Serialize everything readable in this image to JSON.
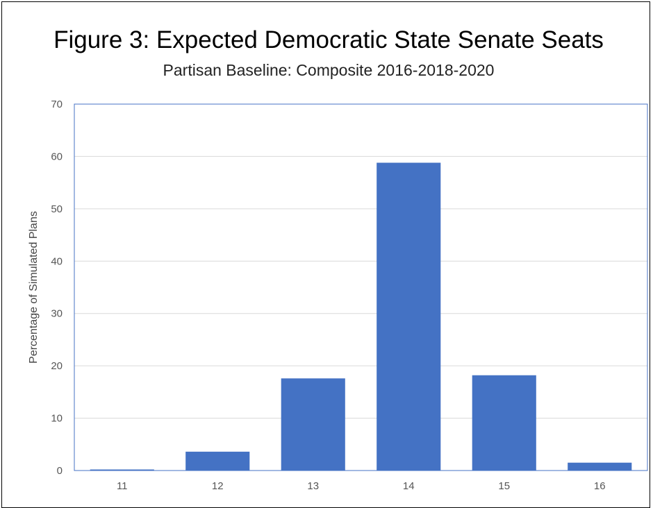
{
  "chart_data": {
    "type": "bar",
    "title": "Figure 3: Expected Democratic State Senate Seats",
    "subtitle": "Partisan Baseline: Composite 2016-2018-2020",
    "xlabel": "",
    "ylabel": "Percentage of Simulated Plans",
    "categories": [
      "11",
      "12",
      "13",
      "14",
      "15",
      "16"
    ],
    "values": [
      0.2,
      3.6,
      17.6,
      58.8,
      18.2,
      1.5
    ],
    "ylim": [
      0,
      70
    ],
    "yticks": [
      "0",
      "10",
      "20",
      "30",
      "40",
      "50",
      "60",
      "70"
    ],
    "grid": true,
    "legend": "none",
    "bar_color": "#4472C4",
    "grid_color": "#d9d9d9",
    "axis_frame_color": "#4472C4"
  }
}
